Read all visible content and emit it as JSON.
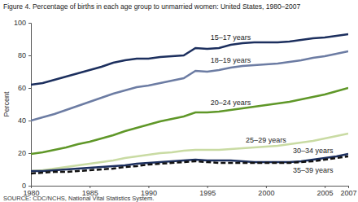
{
  "chart_data": {
    "type": "line",
    "title": "Figure 4.  Percentage of births in each age group to unmarried women: United States, 1980–2007",
    "y_label": "Percent",
    "source": "SOURCE: CDC/NCHS, National Vital Statistics System.",
    "x": [
      1980,
      1981,
      1982,
      1983,
      1984,
      1985,
      1986,
      1987,
      1988,
      1989,
      1990,
      1991,
      1992,
      1993,
      1994,
      1995,
      1996,
      1997,
      1998,
      1999,
      2000,
      2001,
      2002,
      2003,
      2004,
      2005,
      2006,
      2007
    ],
    "xlim": [
      1980,
      2007
    ],
    "xticks": [
      1980,
      1985,
      1990,
      1995,
      2000,
      2005,
      2007
    ],
    "ylim": [
      0,
      100
    ],
    "yticks": [
      0,
      20,
      40,
      60,
      80,
      100
    ],
    "grid": false,
    "series": [
      {
        "name": "15–17 years",
        "color": "#1c2f5e",
        "line_style": "solid",
        "values": [
          62,
          63,
          65,
          67,
          69,
          71,
          73,
          75.5,
          77,
          78,
          78,
          79,
          79.5,
          80,
          84.5,
          84,
          84.5,
          86.5,
          87.5,
          88,
          88,
          88,
          88.5,
          89.5,
          90.5,
          91,
          92,
          93
        ]
      },
      {
        "name": "18–19 years",
        "color": "#6c7ca3",
        "line_style": "solid",
        "values": [
          40,
          42,
          44,
          46.5,
          49,
          51.5,
          54,
          56.5,
          58.5,
          60.5,
          61.5,
          63,
          64.5,
          66,
          70.5,
          70,
          71,
          72.5,
          73.5,
          74,
          74.5,
          75,
          76,
          77,
          78.5,
          79.5,
          81,
          82.5
        ]
      },
      {
        "name": "20–24 years",
        "color": "#5f9728",
        "line_style": "solid",
        "values": [
          19.5,
          20.5,
          22,
          23.5,
          25.5,
          27,
          29,
          31,
          33.5,
          35.5,
          37.5,
          39.5,
          41,
          42.5,
          45,
          45,
          45.5,
          46.5,
          47.5,
          48.5,
          49.5,
          50.5,
          51.5,
          53,
          54.5,
          56,
          58,
          60
        ]
      },
      {
        "name": "25–29 years",
        "color": "#c9dba3",
        "line_style": "solid",
        "values": [
          9,
          9.5,
          10.5,
          11.5,
          12.5,
          13.5,
          14.5,
          15.5,
          17,
          18,
          19,
          20,
          20.5,
          21.5,
          22,
          22,
          22,
          22.5,
          23,
          23.5,
          24,
          24.5,
          25.5,
          26.5,
          27.5,
          29,
          30.5,
          32
        ]
      },
      {
        "name": "30–34 years",
        "color": "#1c2f5e",
        "line_style": "solid",
        "values": [
          9,
          9,
          9.5,
          10,
          10.5,
          11,
          11.5,
          12,
          12.5,
          13.5,
          14,
          14.5,
          15,
          15.5,
          16,
          15.5,
          15.5,
          15.5,
          15,
          14.5,
          14.5,
          14.5,
          14.5,
          15,
          16,
          17,
          18,
          19.5
        ]
      },
      {
        "name": "35–39 years",
        "color": "#111111",
        "line_style": "dashed",
        "values": [
          7.5,
          8,
          8.5,
          8.5,
          9,
          9.5,
          10,
          10.5,
          11.5,
          12,
          13,
          13.5,
          14,
          14.5,
          15,
          14.5,
          14,
          14,
          14,
          14,
          14,
          14,
          14,
          14.5,
          15,
          16,
          17,
          18
        ]
      }
    ]
  }
}
